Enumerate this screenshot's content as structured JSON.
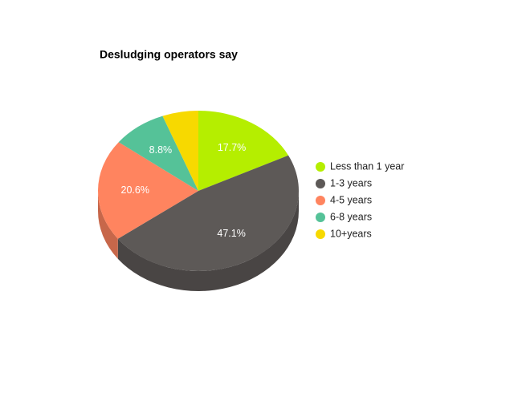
{
  "chart_data": {
    "type": "pie",
    "title": "Desludging operators say",
    "categories": [
      "Less than 1 year",
      "1-3 years",
      "4-5 years",
      "6-8 years",
      "10+years"
    ],
    "values": [
      17.7,
      47.1,
      20.6,
      8.8,
      5.8
    ],
    "value_labels": [
      "17.7%",
      "47.1%",
      "20.6%",
      "8.8%",
      null
    ],
    "colors": [
      "#b5ee00",
      "#5d5957",
      "#ff845f",
      "#55c298",
      "#f7d900"
    ],
    "legend": "right"
  }
}
